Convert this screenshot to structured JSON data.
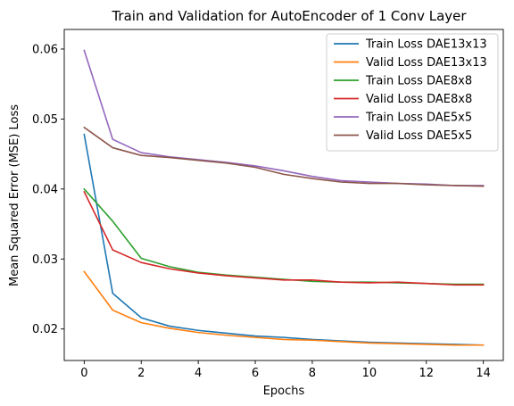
{
  "chart_data": {
    "type": "line",
    "title": "Train and Validation for AutoEncoder of 1 Conv Layer",
    "xlabel": "Epochs",
    "ylabel": "Mean Squared Error (MSE) Loss",
    "x": [
      0,
      1,
      2,
      3,
      4,
      5,
      6,
      7,
      8,
      9,
      10,
      11,
      12,
      13,
      14
    ],
    "xlim": [
      -0.7,
      14.7
    ],
    "ylim": [
      0.0155,
      0.0628
    ],
    "xticks": [
      0,
      2,
      4,
      6,
      8,
      10,
      12,
      14
    ],
    "yticks": [
      0.02,
      0.03,
      0.04,
      0.05,
      0.06
    ],
    "ytick_labels": [
      "0.02",
      "0.03",
      "0.04",
      "0.05",
      "0.06"
    ],
    "grid": false,
    "legend_position": "top-right",
    "series": [
      {
        "name": "Train Loss DAE13x13",
        "color": "#1f77b4",
        "values": [
          0.0478,
          0.0251,
          0.0216,
          0.0204,
          0.0198,
          0.0194,
          0.019,
          0.0188,
          0.0185,
          0.0183,
          0.0181,
          0.018,
          0.0179,
          0.0178,
          0.0177
        ]
      },
      {
        "name": "Valid Loss DAE13x13",
        "color": "#ff7f0e",
        "values": [
          0.0282,
          0.0227,
          0.0209,
          0.0201,
          0.0195,
          0.0191,
          0.0188,
          0.0185,
          0.0184,
          0.0182,
          0.018,
          0.0179,
          0.0178,
          0.0177,
          0.0177
        ]
      },
      {
        "name": "Train Loss DAE8x8",
        "color": "#2ca02c",
        "values": [
          0.04,
          0.0354,
          0.0301,
          0.0289,
          0.0281,
          0.0277,
          0.0274,
          0.0271,
          0.0268,
          0.0267,
          0.0267,
          0.0266,
          0.0265,
          0.0264,
          0.0264
        ]
      },
      {
        "name": "Valid Loss DAE8x8",
        "color": "#d62728",
        "values": [
          0.0396,
          0.0313,
          0.0295,
          0.0286,
          0.028,
          0.0276,
          0.0273,
          0.027,
          0.027,
          0.0267,
          0.0266,
          0.0267,
          0.0265,
          0.0263,
          0.0263
        ]
      },
      {
        "name": "Train Loss DAE5x5",
        "color": "#9467bd",
        "values": [
          0.0598,
          0.0471,
          0.0452,
          0.0446,
          0.0442,
          0.0438,
          0.0433,
          0.0426,
          0.0418,
          0.0412,
          0.041,
          0.0408,
          0.0407,
          0.0405,
          0.0405
        ]
      },
      {
        "name": "Valid Loss DAE5x5",
        "color": "#8c564b",
        "values": [
          0.0488,
          0.0459,
          0.0448,
          0.0445,
          0.0441,
          0.0437,
          0.0431,
          0.0421,
          0.0415,
          0.041,
          0.0408,
          0.0408,
          0.0406,
          0.0405,
          0.0404
        ]
      }
    ]
  }
}
